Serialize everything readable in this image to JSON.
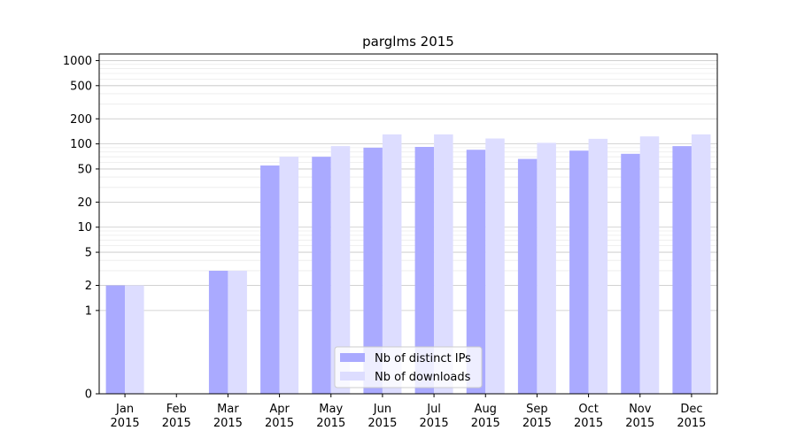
{
  "chart_data": {
    "type": "bar",
    "title": "parglms 2015",
    "xlabel": "",
    "ylabel": "",
    "yscale": "symlog",
    "ylim": [
      0,
      1200
    ],
    "yticks": [
      0,
      1,
      2,
      5,
      10,
      20,
      50,
      100,
      200,
      500,
      1000
    ],
    "ytick_labels": [
      "0",
      "1",
      "2",
      "5",
      "10",
      "20",
      "50",
      "100",
      "200",
      "500",
      "1000"
    ],
    "grid": true,
    "legend_position": "lower-center",
    "categories": [
      [
        "Jan",
        "2015"
      ],
      [
        "Feb",
        "2015"
      ],
      [
        "Mar",
        "2015"
      ],
      [
        "Apr",
        "2015"
      ],
      [
        "May",
        "2015"
      ],
      [
        "Jun",
        "2015"
      ],
      [
        "Jul",
        "2015"
      ],
      [
        "Aug",
        "2015"
      ],
      [
        "Sep",
        "2015"
      ],
      [
        "Oct",
        "2015"
      ],
      [
        "Nov",
        "2015"
      ],
      [
        "Dec",
        "2015"
      ]
    ],
    "series": [
      {
        "name": "Nb of distinct IPs",
        "color": "#aaaaff",
        "values": [
          2,
          0,
          3,
          55,
          70,
          90,
          92,
          85,
          66,
          83,
          76,
          94
        ]
      },
      {
        "name": "Nb of downloads",
        "color": "#ddddff",
        "values": [
          2,
          0,
          3,
          70,
          94,
          130,
          130,
          116,
          103,
          115,
          123,
          130
        ]
      }
    ]
  }
}
